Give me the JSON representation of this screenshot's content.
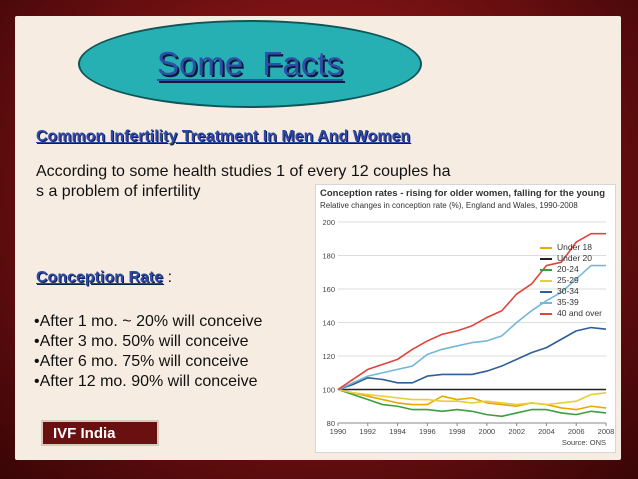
{
  "slide": {
    "title": "Some   Facts",
    "subheading": "Common Infertility Treatment In Men And Women",
    "paragraph_lines": [
      "According to some health studies 1 of  every 12 couples ha",
      "s a problem of infertility"
    ],
    "conception_rate_label": "Conception Rate",
    "conception_rate_colon": " :",
    "bullets": [
      "•After 1 mo. ~ 20% will conceive",
      "•After 3 mo. 50% will conceive",
      "•After 6 mo. 75% will conceive",
      "•After 12 mo. 90% will conceive"
    ],
    "badge": "IVF India"
  },
  "chart_data": {
    "type": "line",
    "title": "Conception rates - rising for older women, falling for the young",
    "subtitle": "Relative changes in conception rate (%), England and Wales, 1990-2008",
    "source": "Source: ONS",
    "x_ticks": [
      "1990",
      "1992",
      "1994",
      "1996",
      "1998",
      "2000",
      "2002",
      "2004",
      "2006",
      "2008"
    ],
    "xlim": [
      1990,
      2008
    ],
    "ylim": [
      80,
      200
    ],
    "y_ticks": [
      80,
      100,
      120,
      140,
      160,
      180,
      200
    ],
    "grid": true,
    "legend_position": "top-right",
    "x": [
      1990,
      1991,
      1992,
      1993,
      1994,
      1995,
      1996,
      1997,
      1998,
      1999,
      2000,
      2001,
      2002,
      2003,
      2004,
      2005,
      2006,
      2007,
      2008
    ],
    "series": [
      {
        "name": "Under 18",
        "color": "#e8a800",
        "values": [
          100,
          98,
          96,
          94,
          92,
          91,
          91,
          96,
          94,
          95,
          92,
          91,
          90,
          92,
          91,
          89,
          88,
          90,
          89
        ]
      },
      {
        "name": "Under 20",
        "color": "#222222",
        "values": [
          100,
          100,
          100,
          100,
          100,
          100,
          100,
          100,
          100,
          100,
          100,
          100,
          100,
          100,
          100,
          100,
          100,
          100,
          100
        ]
      },
      {
        "name": "20-24",
        "color": "#3e9d3e",
        "values": [
          100,
          97,
          94,
          91,
          90,
          88,
          88,
          87,
          88,
          87,
          85,
          84,
          86,
          88,
          88,
          86,
          85,
          87,
          86
        ]
      },
      {
        "name": "25-29",
        "color": "#e6cf3a",
        "values": [
          100,
          98,
          97,
          96,
          95,
          94,
          94,
          93,
          93,
          92,
          93,
          92,
          91,
          92,
          91,
          92,
          93,
          97,
          98
        ]
      },
      {
        "name": "30-34",
        "color": "#2e5f99",
        "values": [
          100,
          103,
          107,
          106,
          104,
          104,
          108,
          109,
          109,
          109,
          111,
          114,
          118,
          122,
          125,
          130,
          135,
          137,
          136
        ]
      },
      {
        "name": "35-39",
        "color": "#74b8d8",
        "values": [
          100,
          104,
          108,
          110,
          112,
          114,
          121,
          124,
          126,
          128,
          129,
          132,
          140,
          147,
          153,
          158,
          166,
          174,
          174
        ]
      },
      {
        "name": "40 and over",
        "color": "#e0443a",
        "values": [
          100,
          106,
          112,
          115,
          118,
          124,
          129,
          133,
          135,
          138,
          143,
          147,
          157,
          163,
          174,
          176,
          188,
          193,
          193
        ]
      }
    ]
  }
}
